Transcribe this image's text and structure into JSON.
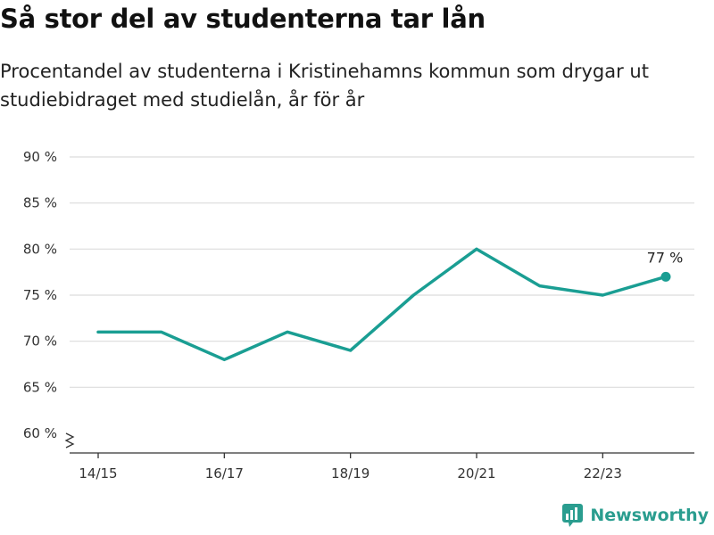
{
  "chart_data": {
    "type": "line",
    "title": "Så stor del av studenterna tar lån",
    "subtitle": "Procentandel av studenterna i Kristinehamns kommun som drygar ut studiebidraget med studielån, år för år",
    "x": [
      "14/15",
      "15/16",
      "16/17",
      "17/18",
      "18/19",
      "19/20",
      "20/21",
      "21/22",
      "22/23",
      "23/24"
    ],
    "x_tick_labels": [
      "14/15",
      "16/17",
      "18/19",
      "20/21",
      "22/23"
    ],
    "series": [
      {
        "values": [
          71,
          71,
          68,
          71,
          69,
          75,
          80,
          76,
          75,
          77
        ]
      }
    ],
    "y_ticks": [
      60,
      65,
      70,
      75,
      80,
      85,
      90
    ],
    "y_tick_suffix": " %",
    "ylim": [
      60,
      90
    ],
    "y_axis_break": true,
    "grid": true,
    "last_value_label": "77 %",
    "line_color": "#1a9e93"
  },
  "brand": {
    "name": "Newsworthy",
    "color": "#2a9d8f"
  }
}
